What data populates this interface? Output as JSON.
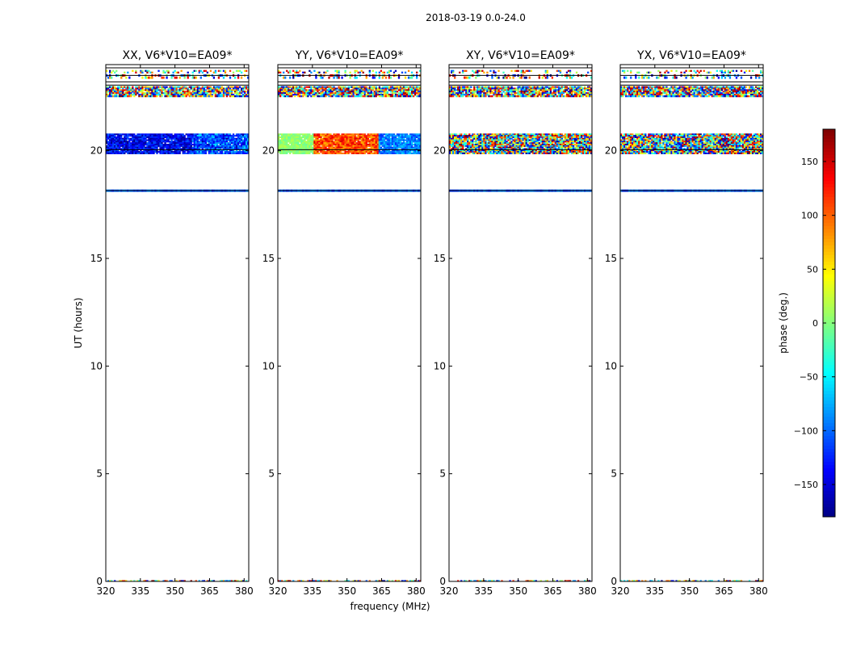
{
  "figure": {
    "suptitle": "2018-03-19 0.0-24.0"
  },
  "chart_data": {
    "type": "heatmap",
    "panels": [
      {
        "title": "XX, V6*V10=EA09*"
      },
      {
        "title": "YY, V6*V10=EA09*"
      },
      {
        "title": "XY, V6*V10=EA09*"
      },
      {
        "title": "YX, V6*V10=EA09*"
      }
    ],
    "xlabel": "frequency (MHz)",
    "ylabel": "UT (hours)",
    "xlim": [
      320,
      382
    ],
    "ylim": [
      0,
      24
    ],
    "xticks": [
      320,
      335,
      350,
      365,
      380
    ],
    "yticks": [
      0,
      5,
      10,
      15,
      20
    ],
    "data_bands_ut": [
      {
        "from": 19.85,
        "to": 20.8,
        "label": "main band"
      },
      {
        "from": 22.5,
        "to": 23.0,
        "label": "upper band"
      },
      {
        "from": 18.1,
        "to": 18.2,
        "label": "thin line"
      },
      {
        "from": 0.0,
        "to": 0.06,
        "label": "bottom line"
      }
    ],
    "colorbar": {
      "label": "phase (deg.)",
      "range": [
        -180,
        180
      ],
      "ticks": [
        -150,
        -100,
        -50,
        0,
        50,
        100,
        150
      ],
      "tick_labels": [
        "−150",
        "−100",
        "−50",
        "0",
        "50",
        "100",
        "150"
      ],
      "colormap": "jet"
    }
  }
}
